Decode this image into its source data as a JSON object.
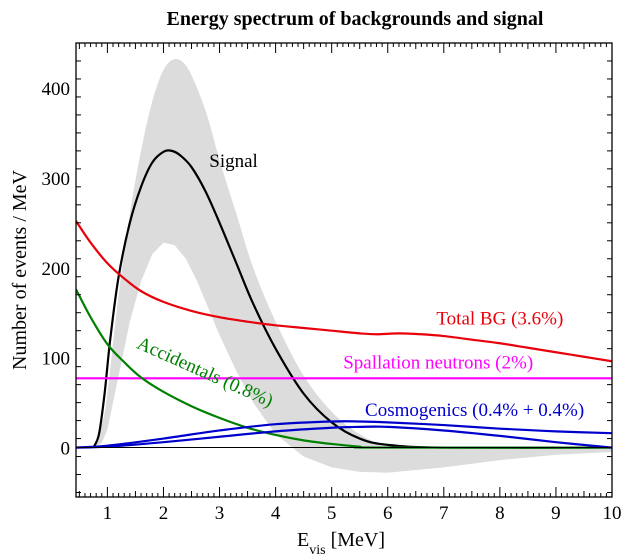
{
  "chart_data": {
    "type": "line",
    "title": "Energy spectrum of backgrounds and signal",
    "xlabel_main": "E",
    "xlabel_sub": "vis",
    "xlabel_unit": " [MeV]",
    "ylabel": "Number of events / MeV",
    "xlim": [
      0.44,
      10
    ],
    "ylim": [
      -55,
      450
    ],
    "x_ticks": [
      1,
      2,
      3,
      4,
      5,
      6,
      7,
      8,
      9,
      10
    ],
    "y_ticks": [
      0,
      100,
      200,
      300,
      400
    ],
    "grid": false,
    "legend": "inline labels",
    "band": {
      "name": "signal uncertainty",
      "color": "#dcdcdc",
      "upper": [
        [
          0.75,
          0
        ],
        [
          0.9,
          25
        ],
        [
          1.0,
          60
        ],
        [
          1.2,
          170
        ],
        [
          1.4,
          260
        ],
        [
          1.6,
          330
        ],
        [
          1.8,
          385
        ],
        [
          2.0,
          420
        ],
        [
          2.2,
          432
        ],
        [
          2.4,
          425
        ],
        [
          2.6,
          400
        ],
        [
          2.8,
          365
        ],
        [
          3.0,
          320
        ],
        [
          3.3,
          260
        ],
        [
          3.6,
          200
        ],
        [
          4.0,
          140
        ],
        [
          4.5,
          80
        ],
        [
          5.0,
          40
        ],
        [
          5.5,
          15
        ],
        [
          6.0,
          3
        ],
        [
          7.0,
          0
        ],
        [
          8.0,
          0
        ],
        [
          10.0,
          0
        ]
      ],
      "lower": [
        [
          0.75,
          0
        ],
        [
          0.9,
          5
        ],
        [
          1.0,
          20
        ],
        [
          1.2,
          80
        ],
        [
          1.4,
          140
        ],
        [
          1.6,
          185
        ],
        [
          1.8,
          215
        ],
        [
          2.0,
          228
        ],
        [
          2.2,
          225
        ],
        [
          2.4,
          210
        ],
        [
          2.6,
          185
        ],
        [
          2.8,
          155
        ],
        [
          3.0,
          125
        ],
        [
          3.3,
          85
        ],
        [
          3.6,
          50
        ],
        [
          4.0,
          15
        ],
        [
          4.5,
          -10
        ],
        [
          5.0,
          -22
        ],
        [
          5.5,
          -27
        ],
        [
          6.0,
          -28
        ],
        [
          6.5,
          -25
        ],
        [
          7.0,
          -22
        ],
        [
          8.0,
          -14
        ],
        [
          9.0,
          -8
        ],
        [
          10.0,
          -5
        ]
      ]
    },
    "series": [
      {
        "name": "Signal",
        "color": "#000000",
        "points": [
          [
            0.75,
            0
          ],
          [
            0.85,
            15
          ],
          [
            0.95,
            60
          ],
          [
            1.05,
            120
          ],
          [
            1.2,
            190
          ],
          [
            1.4,
            250
          ],
          [
            1.6,
            290
          ],
          [
            1.8,
            317
          ],
          [
            2.0,
            329
          ],
          [
            2.15,
            330
          ],
          [
            2.3,
            325
          ],
          [
            2.5,
            312
          ],
          [
            2.75,
            285
          ],
          [
            3.0,
            250
          ],
          [
            3.3,
            205
          ],
          [
            3.6,
            160
          ],
          [
            4.0,
            110
          ],
          [
            4.5,
            60
          ],
          [
            5.0,
            28
          ],
          [
            5.5,
            10
          ],
          [
            6.0,
            3
          ],
          [
            7.0,
            0
          ],
          [
            10.0,
            0
          ]
        ]
      },
      {
        "name": "Total BG (3.6%)",
        "color": "#e8000b",
        "points": [
          [
            0.44,
            252
          ],
          [
            0.7,
            228
          ],
          [
            1.0,
            205
          ],
          [
            1.3,
            188
          ],
          [
            1.6,
            174
          ],
          [
            2.0,
            162
          ],
          [
            2.5,
            152
          ],
          [
            3.0,
            145
          ],
          [
            3.5,
            140
          ],
          [
            4.0,
            136
          ],
          [
            4.5,
            133
          ],
          [
            5.0,
            130
          ],
          [
            5.5,
            127
          ],
          [
            5.8,
            126
          ],
          [
            6.2,
            127
          ],
          [
            6.6,
            126
          ],
          [
            7.0,
            124
          ],
          [
            7.5,
            120
          ],
          [
            8.0,
            116
          ],
          [
            8.5,
            111
          ],
          [
            9.0,
            106
          ],
          [
            9.5,
            101
          ],
          [
            10.0,
            96
          ]
        ]
      },
      {
        "name": "Spallation neutrons (2%)",
        "color": "#ff00ff",
        "points": [
          [
            0.44,
            77
          ],
          [
            10.0,
            77
          ]
        ]
      },
      {
        "name": "Accidentals (0.8%)",
        "color": "#008000",
        "points": [
          [
            0.44,
            176
          ],
          [
            0.7,
            145
          ],
          [
            1.0,
            115
          ],
          [
            1.3,
            95
          ],
          [
            1.6,
            78
          ],
          [
            2.0,
            62
          ],
          [
            2.5,
            46
          ],
          [
            3.0,
            33
          ],
          [
            3.5,
            22
          ],
          [
            4.0,
            14
          ],
          [
            4.5,
            8
          ],
          [
            5.0,
            4
          ],
          [
            5.5,
            1
          ],
          [
            5.8,
            0
          ],
          [
            10.0,
            0
          ]
        ]
      },
      {
        "name": "Cosmogenics (0.4% + 0.4%)",
        "color": "#0000cc",
        "points": [
          [
            0.44,
            0
          ],
          [
            1.0,
            2
          ],
          [
            2.0,
            10
          ],
          [
            3.0,
            19
          ],
          [
            4.0,
            26
          ],
          [
            5.0,
            29
          ],
          [
            5.5,
            29
          ],
          [
            6.0,
            28
          ],
          [
            7.0,
            25
          ],
          [
            8.0,
            21
          ],
          [
            9.0,
            18
          ],
          [
            10.0,
            16
          ]
        ]
      },
      {
        "name": "Cosmogenics component",
        "color": "#0000cc",
        "points": [
          [
            0.44,
            0
          ],
          [
            1.0,
            1
          ],
          [
            2.0,
            6
          ],
          [
            3.0,
            12
          ],
          [
            4.0,
            18
          ],
          [
            5.0,
            22
          ],
          [
            5.5,
            23
          ],
          [
            6.0,
            23
          ],
          [
            7.0,
            19
          ],
          [
            8.0,
            13
          ],
          [
            9.0,
            6
          ],
          [
            10.0,
            0
          ]
        ]
      },
      {
        "name": "zero line",
        "color": "#000000",
        "points": [
          [
            0.44,
            0
          ],
          [
            10.0,
            0
          ]
        ]
      }
    ],
    "labels": [
      {
        "text": "Signal",
        "x": 3.25,
        "y": 312,
        "color": "#000000",
        "rotate": 0,
        "anchor": "middle"
      },
      {
        "text": "Total BG (3.6%)",
        "x": 8.0,
        "y": 137,
        "color": "#e8000b",
        "rotate": 0,
        "anchor": "middle"
      },
      {
        "text": "Spallation neutrons (2%)",
        "x": 6.9,
        "y": 88,
        "color": "#ff00ff",
        "rotate": 0,
        "anchor": "middle"
      },
      {
        "text": "Accidentals (0.8%)",
        "x": 2.7,
        "y": 78,
        "color": "#008000",
        "rotate": 24,
        "anchor": "middle"
      },
      {
        "text": "Cosmogenics (0.4% + 0.4%)",
        "x": 7.55,
        "y": 35,
        "color": "#0000cc",
        "rotate": 0,
        "anchor": "middle"
      }
    ]
  }
}
